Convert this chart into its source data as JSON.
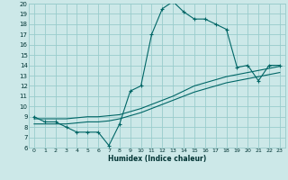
{
  "xlabel": "Humidex (Indice chaleur)",
  "bg_color": "#cce8e8",
  "grid_color": "#99cccc",
  "line_color": "#006666",
  "xlim": [
    -0.5,
    23.5
  ],
  "ylim": [
    6,
    20
  ],
  "xticks": [
    0,
    1,
    2,
    3,
    4,
    5,
    6,
    7,
    8,
    9,
    10,
    11,
    12,
    13,
    14,
    15,
    16,
    17,
    18,
    19,
    20,
    21,
    22,
    23
  ],
  "yticks": [
    6,
    7,
    8,
    9,
    10,
    11,
    12,
    13,
    14,
    15,
    16,
    17,
    18,
    19,
    20
  ],
  "curve1_x": [
    0,
    1,
    2,
    3,
    4,
    5,
    6,
    7,
    8,
    9,
    10,
    11,
    12,
    13,
    14,
    15,
    16,
    17,
    18,
    19,
    20,
    21,
    22,
    23
  ],
  "curve1_y": [
    9.0,
    8.5,
    8.5,
    8.0,
    7.5,
    7.5,
    7.5,
    6.2,
    8.3,
    11.5,
    12.0,
    17.0,
    19.5,
    20.2,
    19.2,
    18.5,
    18.5,
    18.0,
    17.5,
    13.8,
    14.0,
    12.5,
    14.0,
    14.0
  ],
  "curve2_x": [
    0,
    1,
    2,
    3,
    4,
    5,
    6,
    7,
    8,
    9,
    10,
    11,
    12,
    13,
    14,
    15,
    16,
    17,
    18,
    19,
    20,
    21,
    22,
    23
  ],
  "curve2_y": [
    8.8,
    8.8,
    8.8,
    8.8,
    8.9,
    9.0,
    9.0,
    9.1,
    9.2,
    9.5,
    9.8,
    10.2,
    10.6,
    11.0,
    11.5,
    12.0,
    12.3,
    12.6,
    12.9,
    13.1,
    13.3,
    13.5,
    13.7,
    13.9
  ],
  "curve3_x": [
    0,
    1,
    2,
    3,
    4,
    5,
    6,
    7,
    8,
    9,
    10,
    11,
    12,
    13,
    14,
    15,
    16,
    17,
    18,
    19,
    20,
    21,
    22,
    23
  ],
  "curve3_y": [
    8.3,
    8.3,
    8.3,
    8.3,
    8.4,
    8.5,
    8.5,
    8.6,
    8.8,
    9.1,
    9.4,
    9.8,
    10.2,
    10.6,
    11.0,
    11.4,
    11.7,
    12.0,
    12.3,
    12.5,
    12.7,
    12.9,
    13.1,
    13.3
  ]
}
